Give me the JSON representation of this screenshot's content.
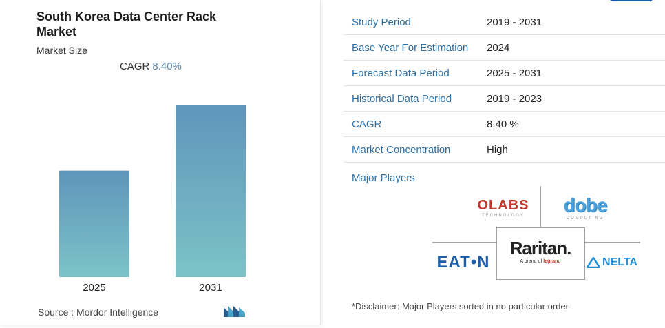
{
  "left": {
    "title": "South Korea Data Center Rack Market",
    "subtitle": "Market Size",
    "cagr_label": "CAGR",
    "cagr_value": "8.40%",
    "source": "Source : Mordor Intelligence"
  },
  "chart_data": {
    "type": "bar",
    "categories": [
      "2025",
      "2031"
    ],
    "values": [
      1.0,
      1.62
    ],
    "title": "",
    "xlabel": "",
    "ylabel": "",
    "grid": false,
    "colors": {
      "top": "#5f95bb",
      "bottom": "#7cc3c7"
    }
  },
  "table": {
    "rows": [
      {
        "key": "Study Period",
        "value": "2019 - 2031"
      },
      {
        "key": "Base Year For Estimation",
        "value": "2024"
      },
      {
        "key": "Forecast Data Period",
        "value": "2025 - 2031"
      },
      {
        "key": "Historical Data Period",
        "value": "2019 - 2023"
      },
      {
        "key": "CAGR",
        "value": "8.40 %"
      },
      {
        "key": "Market Concentration",
        "value": "High"
      }
    ]
  },
  "players": {
    "label": "Major Players",
    "olabs": {
      "name": "OLABS",
      "sub": "TECHNOLOGY"
    },
    "dobe": {
      "name": "dobe",
      "sub": "COMPUTING"
    },
    "raritan": {
      "name": "Raritan.",
      "sub_prefix": "A brand of",
      "sub_brand": "legrand"
    },
    "eaton": {
      "name": "EAT•N"
    },
    "delta": {
      "name": "NELTA"
    }
  },
  "disclaimer": "*Disclaimer: Major Players sorted in no particular order",
  "colors": {
    "accent": "#2b6ea3",
    "cagr": "#5b8cb2"
  }
}
